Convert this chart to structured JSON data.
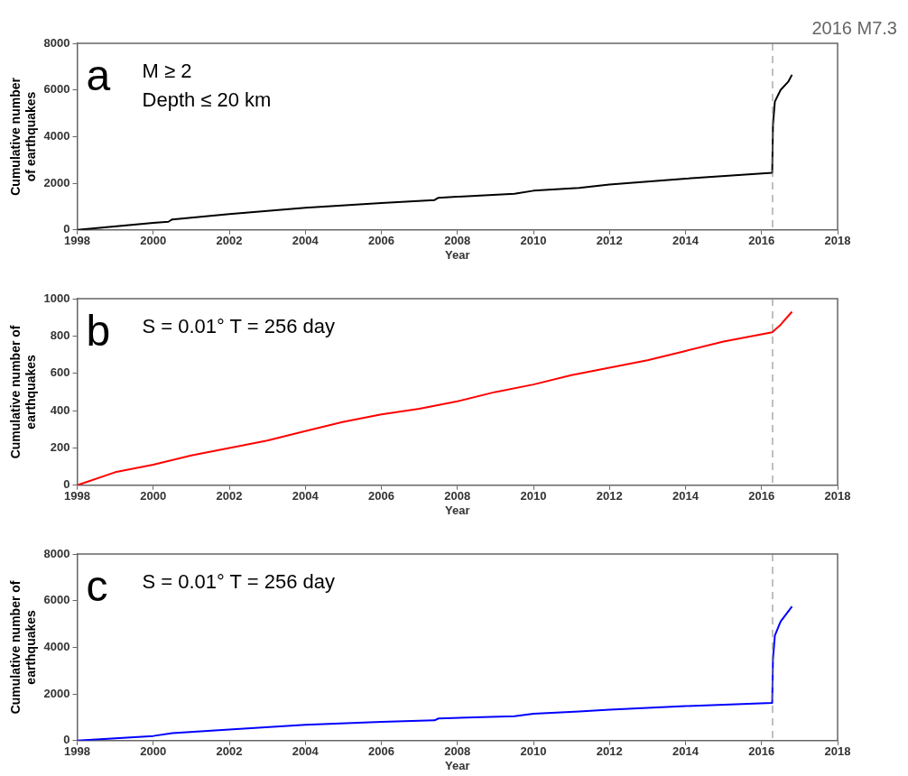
{
  "chart_data": [
    {
      "type": "line",
      "xlabel": "Year",
      "ylabel": "Cumulative number\nof earthquakes",
      "annotations": [
        "a",
        "M ≥ 2",
        "Depth ≤ 20 km"
      ],
      "x": [
        1998,
        2000,
        2000.4,
        2000.5,
        2002,
        2004,
        2006,
        2007.4,
        2007.5,
        2009.5,
        2010,
        2011.2,
        2012,
        2014,
        2016.28,
        2016.3,
        2016.35,
        2016.5,
        2016.7,
        2016.8
      ],
      "series": [
        {
          "color": "#000000",
          "values": [
            0,
            300,
            350,
            450,
            680,
            950,
            1150,
            1280,
            1380,
            1550,
            1680,
            1800,
            1950,
            2200,
            2450,
            4500,
            5500,
            6000,
            6350,
            6650
          ]
        }
      ],
      "xlim": [
        1998,
        2018
      ],
      "xticks": [
        1998,
        2000,
        2002,
        2004,
        2006,
        2008,
        2010,
        2012,
        2014,
        2016,
        2018
      ],
      "ylim": [
        0,
        8000
      ],
      "yticks": [
        0,
        2000,
        4000,
        6000,
        8000
      ],
      "ref_lines": [
        {
          "axis": "x",
          "value": 2016.29,
          "label": "2016 M7.3",
          "color": "#808080",
          "line_style": "dashed"
        }
      ],
      "grid": false,
      "legend": false,
      "marker": "none",
      "line_style": "solid"
    },
    {
      "type": "line",
      "xlabel": "Year",
      "ylabel": "Cumulative number of\nearthquakes",
      "annotations": [
        "b",
        "S = 0.01° T = 256 day"
      ],
      "x": [
        1998,
        1999,
        2000,
        2001,
        2002,
        2003,
        2004,
        2005,
        2006,
        2007,
        2008,
        2009,
        2010,
        2011,
        2012,
        2013,
        2014,
        2015,
        2016.28,
        2016.5,
        2016.8
      ],
      "series": [
        {
          "color": "#ff0000",
          "values": [
            0,
            70,
            110,
            160,
            200,
            240,
            290,
            340,
            380,
            410,
            450,
            500,
            540,
            590,
            630,
            670,
            720,
            770,
            820,
            860,
            930
          ]
        }
      ],
      "xlim": [
        1998,
        2018
      ],
      "xticks": [
        1998,
        2000,
        2002,
        2004,
        2006,
        2008,
        2010,
        2012,
        2014,
        2016,
        2018
      ],
      "ylim": [
        0,
        1000
      ],
      "yticks": [
        0,
        200,
        400,
        600,
        800,
        1000
      ],
      "ref_lines": [
        {
          "axis": "x",
          "value": 2016.29,
          "color": "#808080",
          "line_style": "dashed"
        }
      ],
      "grid": false,
      "legend": false,
      "marker": "none",
      "line_style": "solid"
    },
    {
      "type": "line",
      "xlabel": "Year",
      "ylabel": "Cumulative number of\nearthquakes",
      "annotations": [
        "c",
        "S = 0.01° T = 256 day"
      ],
      "x": [
        1998,
        2000,
        2000.5,
        2002,
        2004,
        2006,
        2007.4,
        2007.5,
        2009.5,
        2010,
        2011.2,
        2012,
        2014,
        2016.28,
        2016.3,
        2016.35,
        2016.5,
        2016.8
      ],
      "series": [
        {
          "color": "#0000ff",
          "values": [
            0,
            200,
            320,
            480,
            680,
            800,
            870,
            950,
            1050,
            1150,
            1250,
            1330,
            1480,
            1620,
            3500,
            4500,
            5100,
            5750
          ]
        }
      ],
      "xlim": [
        1998,
        2018
      ],
      "xticks": [
        1998,
        2000,
        2002,
        2004,
        2006,
        2008,
        2010,
        2012,
        2014,
        2016,
        2018
      ],
      "ylim": [
        0,
        8000
      ],
      "yticks": [
        0,
        2000,
        4000,
        6000,
        8000
      ],
      "ref_lines": [
        {
          "axis": "x",
          "value": 2016.29,
          "color": "#808080",
          "line_style": "dashed"
        }
      ],
      "grid": false,
      "legend": false,
      "marker": "none",
      "line_style": "solid"
    }
  ]
}
